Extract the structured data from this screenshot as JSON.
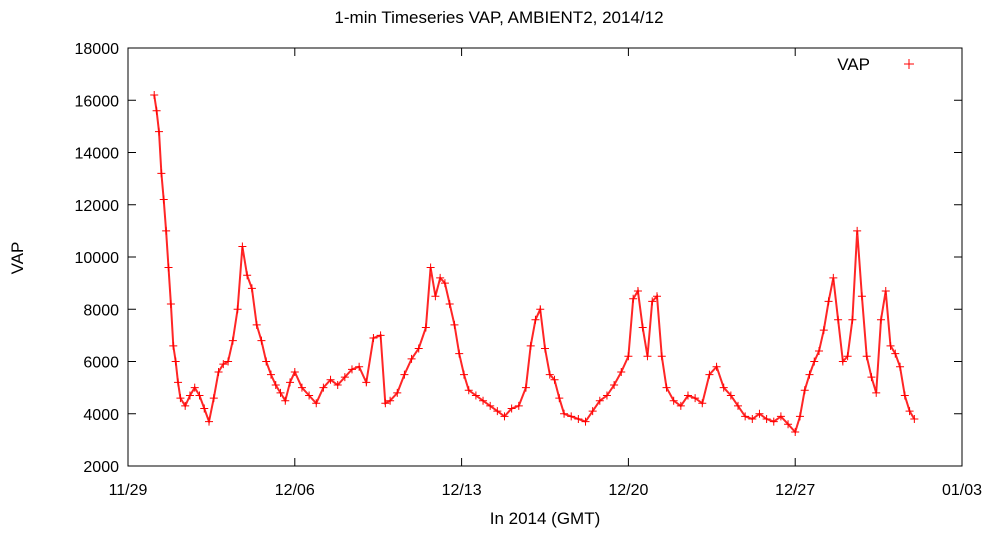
{
  "chart_data": {
    "type": "scatter",
    "title": "1-min Timeseries VAP, AMBIENT2, 2014/12",
    "xlabel": "In 2014 (GMT)",
    "ylabel": "VAP",
    "xlim": [
      0,
      35
    ],
    "ylim": [
      2000,
      18000
    ],
    "x_ticks": [
      {
        "day": 0,
        "label": "11/29"
      },
      {
        "day": 7,
        "label": "12/06"
      },
      {
        "day": 14,
        "label": "12/13"
      },
      {
        "day": 21,
        "label": "12/20"
      },
      {
        "day": 28,
        "label": "12/27"
      },
      {
        "day": 35,
        "label": "01/03"
      }
    ],
    "y_ticks": [
      2000,
      4000,
      6000,
      8000,
      10000,
      12000,
      14000,
      16000,
      18000
    ],
    "grid": false,
    "legend": {
      "position": "top-right",
      "entries": [
        {
          "name": "VAP",
          "marker": "+",
          "color": "#ff0000"
        }
      ]
    },
    "series": [
      {
        "name": "VAP",
        "color": "#ff0000",
        "marker": "+",
        "x_unit": "days since 11/29 00:00 GMT",
        "points": [
          [
            1.1,
            16200
          ],
          [
            1.2,
            15600
          ],
          [
            1.3,
            14800
          ],
          [
            1.4,
            13200
          ],
          [
            1.5,
            12200
          ],
          [
            1.6,
            11000
          ],
          [
            1.7,
            9600
          ],
          [
            1.8,
            8200
          ],
          [
            1.9,
            6600
          ],
          [
            2.0,
            6000
          ],
          [
            2.1,
            5200
          ],
          [
            2.2,
            4600
          ],
          [
            2.4,
            4300
          ],
          [
            2.6,
            4700
          ],
          [
            2.8,
            5000
          ],
          [
            3.0,
            4700
          ],
          [
            3.2,
            4200
          ],
          [
            3.4,
            3700
          ],
          [
            3.6,
            4600
          ],
          [
            3.8,
            5600
          ],
          [
            4.0,
            5900
          ],
          [
            4.2,
            6000
          ],
          [
            4.4,
            6800
          ],
          [
            4.6,
            8000
          ],
          [
            4.8,
            10400
          ],
          [
            5.0,
            9300
          ],
          [
            5.2,
            8800
          ],
          [
            5.4,
            7400
          ],
          [
            5.6,
            6800
          ],
          [
            5.8,
            6000
          ],
          [
            6.0,
            5500
          ],
          [
            6.2,
            5100
          ],
          [
            6.4,
            4800
          ],
          [
            6.6,
            4500
          ],
          [
            6.8,
            5200
          ],
          [
            7.0,
            5600
          ],
          [
            7.3,
            5000
          ],
          [
            7.6,
            4700
          ],
          [
            7.9,
            4400
          ],
          [
            8.2,
            5000
          ],
          [
            8.5,
            5300
          ],
          [
            8.8,
            5100
          ],
          [
            9.1,
            5400
          ],
          [
            9.4,
            5700
          ],
          [
            9.7,
            5800
          ],
          [
            10.0,
            5200
          ],
          [
            10.3,
            6900
          ],
          [
            10.6,
            7000
          ],
          [
            10.8,
            4400
          ],
          [
            11.0,
            4500
          ],
          [
            11.3,
            4800
          ],
          [
            11.6,
            5500
          ],
          [
            11.9,
            6100
          ],
          [
            12.2,
            6500
          ],
          [
            12.5,
            7300
          ],
          [
            12.7,
            9600
          ],
          [
            12.9,
            8500
          ],
          [
            13.1,
            9200
          ],
          [
            13.3,
            9000
          ],
          [
            13.5,
            8200
          ],
          [
            13.7,
            7400
          ],
          [
            13.9,
            6300
          ],
          [
            14.1,
            5500
          ],
          [
            14.3,
            4900
          ],
          [
            14.6,
            4700
          ],
          [
            14.9,
            4500
          ],
          [
            15.2,
            4300
          ],
          [
            15.5,
            4100
          ],
          [
            15.8,
            3900
          ],
          [
            16.1,
            4200
          ],
          [
            16.4,
            4300
          ],
          [
            16.7,
            5000
          ],
          [
            16.9,
            6600
          ],
          [
            17.1,
            7600
          ],
          [
            17.3,
            8000
          ],
          [
            17.5,
            6500
          ],
          [
            17.7,
            5500
          ],
          [
            17.9,
            5300
          ],
          [
            18.1,
            4600
          ],
          [
            18.3,
            4000
          ],
          [
            18.6,
            3900
          ],
          [
            18.9,
            3800
          ],
          [
            19.2,
            3700
          ],
          [
            19.5,
            4100
          ],
          [
            19.8,
            4500
          ],
          [
            20.1,
            4700
          ],
          [
            20.4,
            5100
          ],
          [
            20.7,
            5600
          ],
          [
            21.0,
            6200
          ],
          [
            21.2,
            8400
          ],
          [
            21.4,
            8700
          ],
          [
            21.6,
            7300
          ],
          [
            21.8,
            6200
          ],
          [
            22.0,
            8300
          ],
          [
            22.2,
            8500
          ],
          [
            22.4,
            6200
          ],
          [
            22.6,
            5000
          ],
          [
            22.9,
            4500
          ],
          [
            23.2,
            4300
          ],
          [
            23.5,
            4700
          ],
          [
            23.8,
            4600
          ],
          [
            24.1,
            4400
          ],
          [
            24.4,
            5500
          ],
          [
            24.7,
            5800
          ],
          [
            25.0,
            5000
          ],
          [
            25.3,
            4700
          ],
          [
            25.6,
            4300
          ],
          [
            25.9,
            3900
          ],
          [
            26.2,
            3800
          ],
          [
            26.5,
            4000
          ],
          [
            26.8,
            3800
          ],
          [
            27.1,
            3700
          ],
          [
            27.4,
            3900
          ],
          [
            27.7,
            3600
          ],
          [
            28.0,
            3300
          ],
          [
            28.2,
            3900
          ],
          [
            28.4,
            4900
          ],
          [
            28.6,
            5500
          ],
          [
            28.8,
            6000
          ],
          [
            29.0,
            6400
          ],
          [
            29.2,
            7200
          ],
          [
            29.4,
            8300
          ],
          [
            29.6,
            9200
          ],
          [
            29.8,
            7600
          ],
          [
            30.0,
            6000
          ],
          [
            30.2,
            6200
          ],
          [
            30.4,
            7600
          ],
          [
            30.6,
            11000
          ],
          [
            30.8,
            8500
          ],
          [
            31.0,
            6200
          ],
          [
            31.2,
            5400
          ],
          [
            31.4,
            4800
          ],
          [
            31.6,
            7600
          ],
          [
            31.8,
            8700
          ],
          [
            32.0,
            6600
          ],
          [
            32.2,
            6300
          ],
          [
            32.4,
            5800
          ],
          [
            32.6,
            4700
          ],
          [
            32.8,
            4100
          ],
          [
            33.0,
            3800
          ]
        ]
      }
    ]
  }
}
